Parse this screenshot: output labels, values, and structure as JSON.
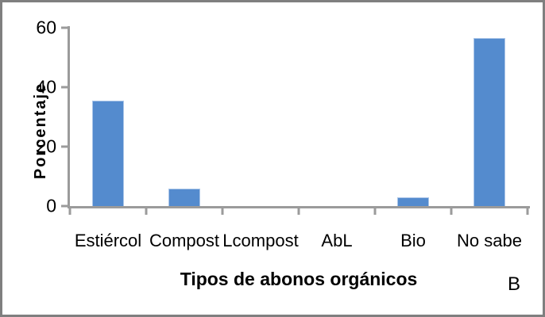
{
  "window": {
    "background": "#ffffff",
    "border_color": "#7f7f7f"
  },
  "chart_data": {
    "type": "bar",
    "title": "",
    "categories": [
      "Estiércol",
      "Compost",
      "Lcompost",
      "AbL",
      "Bio",
      "No sabe"
    ],
    "values": [
      35.5,
      6,
      0,
      0,
      3,
      56.5
    ],
    "xlabel": "Tipos de abonos orgánicos",
    "ylabel": "Porcentaje",
    "ylim": [
      0,
      60
    ],
    "yticks": [
      0,
      20,
      40,
      60
    ],
    "grid": false,
    "legend": "none",
    "bar_color": "#548bce",
    "bar_edge_color": "#aac5e8",
    "axis_color": "#9b9b9b",
    "text_color": "#000000"
  },
  "annotations": {
    "panel_label": "B"
  }
}
